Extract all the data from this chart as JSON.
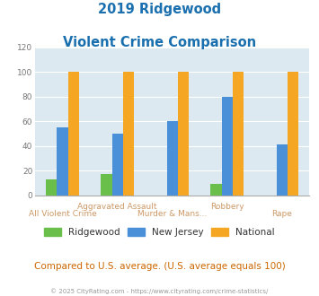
{
  "title_line1": "2019 Ridgewood",
  "title_line2": "Violent Crime Comparison",
  "title_color": "#1a6faf",
  "categories": [
    "All Violent Crime",
    "Aggravated Assault",
    "Murder & Mans...",
    "Robbery",
    "Rape"
  ],
  "series": {
    "Ridgewood": [
      13,
      17,
      0,
      9,
      0
    ],
    "New Jersey": [
      55,
      50,
      60,
      80,
      41
    ],
    "National": [
      100,
      100,
      100,
      100,
      100
    ]
  },
  "colors": {
    "Ridgewood": "#6abf4b",
    "New Jersey": "#4a90d9",
    "National": "#f5a623"
  },
  "ylim": [
    0,
    120
  ],
  "yticks": [
    0,
    20,
    40,
    60,
    80,
    100,
    120
  ],
  "plot_bg": "#dce9f0",
  "footer_text": "© 2025 CityRating.com - https://www.cityrating.com/crime-statistics/",
  "subtitle_text": "Compared to U.S. average. (U.S. average equals 100)",
  "subtitle_color": "#cc6600",
  "footer_color": "#999999",
  "xlabel_color": "#cc9966",
  "legend_text_color": "#333333",
  "top_row_labels": [
    "",
    "Aggravated Assault",
    "",
    "Robbery",
    ""
  ],
  "bot_row_labels": [
    "All Violent Crime",
    "",
    "Murder & Mans...",
    "",
    "Rape"
  ]
}
